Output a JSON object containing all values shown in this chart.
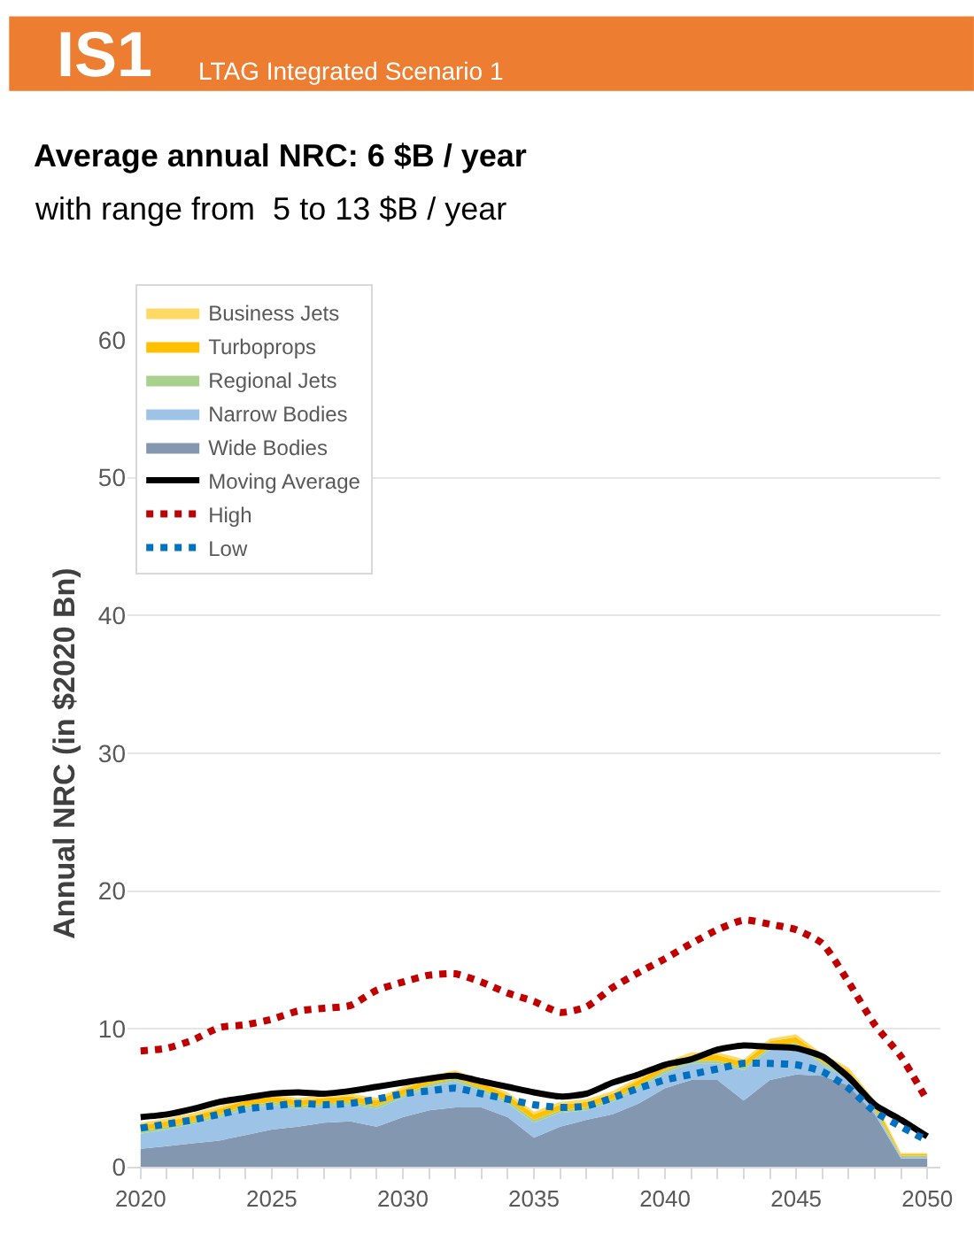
{
  "chart_data": {
    "type": "area",
    "stacked": true,
    "title": "Average annual NRC: 6 $B / year",
    "subtitle": "with range from  5 to 13 $B / year",
    "annotations": [
      "IS1",
      "LTAG Integrated Scenario 1"
    ],
    "ylabel": "Annual NRC (in $2020 Bn)",
    "x": [
      2020,
      2021,
      2022,
      2023,
      2024,
      2025,
      2026,
      2027,
      2028,
      2029,
      2030,
      2031,
      2032,
      2033,
      2034,
      2035,
      2036,
      2037,
      2038,
      2039,
      2040,
      2041,
      2042,
      2043,
      2044,
      2045,
      2046,
      2047,
      2048,
      2049,
      2050
    ],
    "xlim": [
      2019.5,
      2050.5
    ],
    "xticks": [
      2020,
      2025,
      2030,
      2035,
      2040,
      2045,
      2050
    ],
    "ylim": [
      0,
      60
    ],
    "yticks": [
      0,
      10,
      20,
      30,
      40,
      50,
      60
    ],
    "grid": "y",
    "legend": "top left",
    "series": [
      {
        "name": "Wide Bodies",
        "color": "#8497b0",
        "values": [
          1.3,
          1.5,
          1.7,
          1.9,
          2.3,
          2.7,
          2.9,
          3.2,
          3.3,
          2.9,
          3.6,
          4.1,
          4.3,
          4.3,
          3.6,
          2.1,
          2.9,
          3.4,
          3.8,
          4.6,
          5.7,
          6.3,
          6.3,
          4.8,
          6.3,
          6.7,
          6.6,
          5.9,
          3.8,
          0.6,
          0.6
        ]
      },
      {
        "name": "Narrow Bodies",
        "color": "#9dc3e6",
        "values": [
          1.1,
          1.2,
          1.4,
          1.7,
          1.9,
          1.8,
          1.3,
          1.2,
          1.2,
          1.3,
          1.4,
          1.7,
          1.9,
          1.2,
          1.0,
          1.1,
          1.0,
          0.7,
          0.9,
          1.1,
          1.1,
          1.2,
          1.2,
          2.2,
          2.2,
          2.1,
          0.8,
          0.5,
          0.2,
          0.1,
          0.1
        ]
      },
      {
        "name": "Regional Jets",
        "color": "#a9d18e",
        "values": [
          0.2,
          0.2,
          0.2,
          0.2,
          0.2,
          0.2,
          0.2,
          0.2,
          0.2,
          0.2,
          0.2,
          0.2,
          0.2,
          0.2,
          0.2,
          0.2,
          0.2,
          0.2,
          0.2,
          0.2,
          0.2,
          0.2,
          0.2,
          0.2,
          0.2,
          0.2,
          0.2,
          0.2,
          0.2,
          0.1,
          0.1
        ]
      },
      {
        "name": "Turboprops",
        "color": "#ffc000",
        "values": [
          0.4,
          0.4,
          0.4,
          0.4,
          0.4,
          0.4,
          0.4,
          0.4,
          0.4,
          0.4,
          0.4,
          0.4,
          0.4,
          0.4,
          0.4,
          0.4,
          0.4,
          0.4,
          0.4,
          0.4,
          0.4,
          0.4,
          0.4,
          0.4,
          0.4,
          0.4,
          0.4,
          0.4,
          0.4,
          0.1,
          0.1
        ]
      },
      {
        "name": "Business Jets",
        "color": "#ffd966",
        "values": [
          0.2,
          0.2,
          0.2,
          0.2,
          0.2,
          0.2,
          0.2,
          0.2,
          0.2,
          0.2,
          0.2,
          0.2,
          0.2,
          0.2,
          0.2,
          0.2,
          0.2,
          0.2,
          0.2,
          0.2,
          0.2,
          0.2,
          0.2,
          0.2,
          0.2,
          0.2,
          0.2,
          0.2,
          0.2,
          0.1,
          0.1
        ]
      },
      {
        "name": "Moving Average",
        "type": "line",
        "color": "#000000",
        "line_style": "solid",
        "values": [
          3.6,
          3.8,
          4.2,
          4.7,
          5.0,
          5.3,
          5.4,
          5.3,
          5.5,
          5.8,
          6.1,
          6.4,
          6.6,
          6.2,
          5.8,
          5.4,
          5.1,
          5.3,
          6.1,
          6.7,
          7.4,
          7.8,
          8.5,
          8.8,
          8.7,
          8.6,
          8.0,
          6.5,
          4.5,
          3.4,
          2.2
        ]
      },
      {
        "name": "High",
        "type": "line",
        "color": "#c00000",
        "line_style": "dotted",
        "values": [
          8.4,
          8.6,
          9.2,
          10.1,
          10.3,
          10.7,
          11.3,
          11.5,
          11.7,
          12.8,
          13.4,
          13.9,
          14.0,
          13.4,
          12.6,
          12.0,
          11.2,
          11.6,
          13.0,
          14.1,
          15.1,
          16.2,
          17.2,
          17.9,
          17.6,
          17.2,
          16.2,
          13.4,
          10.3,
          8.0,
          4.8
        ]
      },
      {
        "name": "Low",
        "type": "line",
        "color": "#0070c0",
        "line_style": "dotted",
        "values": [
          2.8,
          3.1,
          3.4,
          3.8,
          4.2,
          4.4,
          4.6,
          4.5,
          4.6,
          4.9,
          5.3,
          5.5,
          5.7,
          5.3,
          4.9,
          4.5,
          4.3,
          4.4,
          5.0,
          5.7,
          6.3,
          6.7,
          7.1,
          7.5,
          7.5,
          7.4,
          6.9,
          5.7,
          4.0,
          2.9,
          1.9
        ]
      }
    ]
  }
}
